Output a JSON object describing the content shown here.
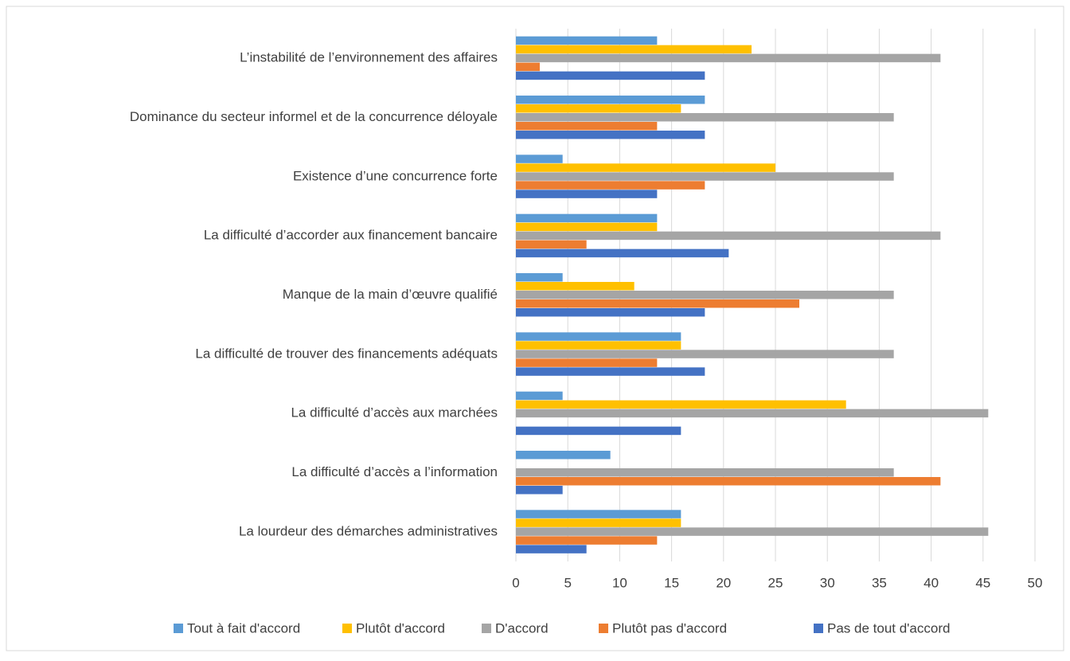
{
  "chart_data": {
    "type": "bar",
    "orientation": "horizontal",
    "categories": [
      "L’instabilité de l’environnement des affaires",
      "Dominance du secteur informel et de la concurrence déloyale",
      "Existence d’une concurrence forte",
      "La difficulté  d’accorder aux financement bancaire",
      "Manque de la main d’œuvre qualifié",
      "La difficulté de trouver des financements adéquats",
      "La difficulté d’accès aux marchées",
      "La difficulté d’accès a l’information",
      "La lourdeur des démarches administratives"
    ],
    "series": [
      {
        "name": "Tout à fait d'accord",
        "color": "#5b9bd5",
        "values": [
          13.6,
          18.2,
          4.5,
          13.6,
          4.5,
          15.9,
          4.5,
          9.1,
          15.9
        ]
      },
      {
        "name": "Plutôt d'accord",
        "color": "#ffc000",
        "values": [
          22.7,
          15.9,
          25,
          13.6,
          11.4,
          15.9,
          31.8,
          0,
          15.9
        ]
      },
      {
        "name": "D'accord",
        "color": "#a5a5a5",
        "values": [
          40.9,
          36.4,
          36.4,
          40.9,
          36.4,
          36.4,
          45.5,
          36.4,
          45.5
        ]
      },
      {
        "name": "Plutôt pas d'accord",
        "color": "#ed7d31",
        "values": [
          2.3,
          13.6,
          18.2,
          6.8,
          27.3,
          13.6,
          0,
          40.9,
          13.6
        ]
      },
      {
        "name": "Pas de tout d'accord",
        "color": "#4472c4",
        "values": [
          18.2,
          18.2,
          13.6,
          20.5,
          18.2,
          18.2,
          15.9,
          4.5,
          6.8
        ]
      }
    ],
    "xlim": [
      0,
      50
    ],
    "xticks": [
      0,
      5,
      10,
      15,
      20,
      25,
      30,
      35,
      40,
      45,
      50
    ],
    "grid": true,
    "legend": "bottom"
  }
}
